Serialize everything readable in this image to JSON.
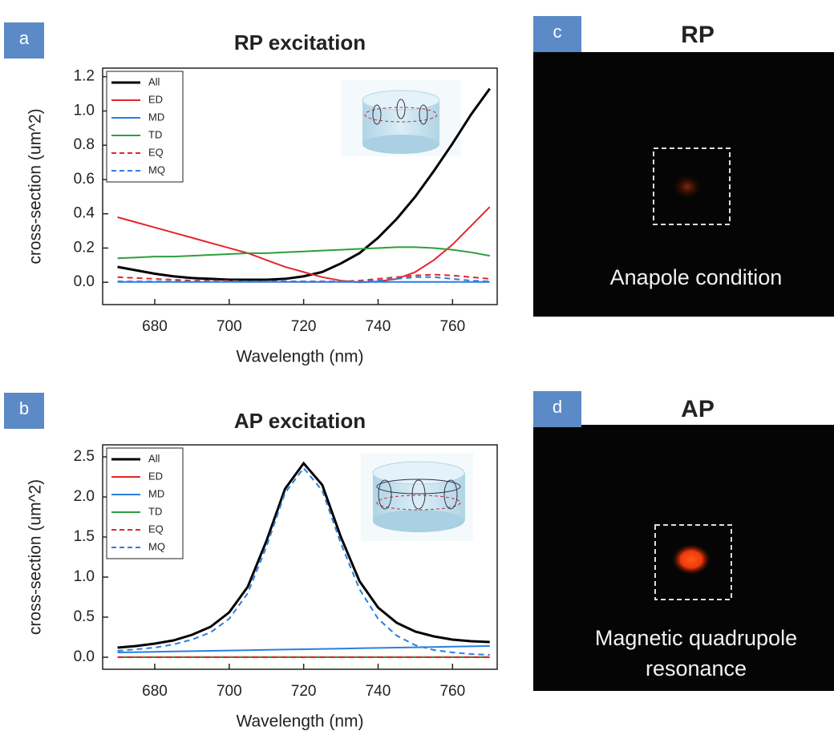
{
  "chart_data": [
    {
      "type": "line",
      "panel_label": "a",
      "title": "RP excitation",
      "x_label": "Wavelength (nm)",
      "y_label": "cross-section (um^2)",
      "x": [
        670,
        675,
        680,
        685,
        690,
        695,
        700,
        705,
        710,
        715,
        720,
        725,
        730,
        735,
        740,
        745,
        750,
        755,
        760,
        765,
        770
      ],
      "series": [
        {
          "name": "All",
          "color": "#000000",
          "dashed": false,
          "values": [
            0.09,
            0.07,
            0.05,
            0.035,
            0.025,
            0.02,
            0.015,
            0.015,
            0.015,
            0.02,
            0.035,
            0.06,
            0.11,
            0.17,
            0.26,
            0.37,
            0.5,
            0.65,
            0.81,
            0.98,
            1.13
          ]
        },
        {
          "name": "ED",
          "color": "#e3262b",
          "dashed": false,
          "values": [
            0.38,
            0.35,
            0.32,
            0.29,
            0.26,
            0.23,
            0.2,
            0.17,
            0.13,
            0.09,
            0.06,
            0.03,
            0.01,
            0.0,
            0.005,
            0.02,
            0.06,
            0.13,
            0.22,
            0.33,
            0.44
          ]
        },
        {
          "name": "MD",
          "color": "#2b7ee0",
          "dashed": false,
          "values": [
            0.002,
            0.002,
            0.002,
            0.002,
            0.002,
            0.002,
            0.002,
            0.002,
            0.002,
            0.002,
            0.002,
            0.002,
            0.002,
            0.002,
            0.002,
            0.002,
            0.002,
            0.002,
            0.002,
            0.002,
            0.002
          ]
        },
        {
          "name": "TD",
          "color": "#2e9e3e",
          "dashed": false,
          "values": [
            0.14,
            0.145,
            0.15,
            0.15,
            0.155,
            0.16,
            0.165,
            0.17,
            0.17,
            0.175,
            0.18,
            0.185,
            0.19,
            0.195,
            0.2,
            0.205,
            0.205,
            0.2,
            0.19,
            0.175,
            0.155
          ]
        },
        {
          "name": "EQ",
          "color": "#e3262b",
          "dashed": true,
          "values": [
            0.03,
            0.025,
            0.02,
            0.015,
            0.01,
            0.01,
            0.01,
            0.005,
            0.005,
            0.005,
            0.005,
            0.005,
            0.005,
            0.01,
            0.02,
            0.03,
            0.04,
            0.045,
            0.04,
            0.03,
            0.02
          ]
        },
        {
          "name": "MQ",
          "color": "#2b7ee0",
          "dashed": true,
          "values": [
            0.005,
            0.005,
            0.005,
            0.005,
            0.005,
            0.005,
            0.005,
            0.005,
            0.005,
            0.005,
            0.005,
            0.005,
            0.005,
            0.005,
            0.01,
            0.02,
            0.03,
            0.03,
            0.02,
            0.01,
            0.005
          ]
        }
      ],
      "xlim": [
        666,
        772
      ],
      "ylim": [
        -0.13,
        1.25
      ],
      "xticks": [
        680,
        700,
        720,
        740,
        760
      ],
      "yticks": [
        {
          "value": 0,
          "label": "0.0"
        },
        0.2,
        0.4,
        0.6,
        0.8,
        {
          "value": 1,
          "label": "1.0"
        },
        1.2
      ],
      "legend": "upper left"
    },
    {
      "type": "line",
      "panel_label": "b",
      "title": "AP excitation",
      "x_label": "Wavelength (nm)",
      "y_label": "cross-section (um^2)",
      "x": [
        670,
        675,
        680,
        685,
        690,
        695,
        700,
        705,
        710,
        715,
        720,
        725,
        730,
        735,
        740,
        745,
        750,
        755,
        760,
        765,
        770
      ],
      "series": [
        {
          "name": "All",
          "color": "#000000",
          "dashed": false,
          "values": [
            0.12,
            0.14,
            0.17,
            0.21,
            0.28,
            0.38,
            0.56,
            0.88,
            1.45,
            2.1,
            2.42,
            2.15,
            1.5,
            0.95,
            0.62,
            0.43,
            0.32,
            0.26,
            0.22,
            0.2,
            0.19
          ]
        },
        {
          "name": "ED",
          "color": "#e3262b",
          "dashed": false,
          "values": [
            0.003,
            0.003,
            0.003,
            0.003,
            0.003,
            0.003,
            0.003,
            0.003,
            0.003,
            0.003,
            0.003,
            0.003,
            0.003,
            0.003,
            0.003,
            0.003,
            0.003,
            0.003,
            0.003,
            0.003,
            0.003
          ]
        },
        {
          "name": "MD",
          "color": "#2b7ee0",
          "dashed": false,
          "values": [
            0.06,
            0.064,
            0.068,
            0.072,
            0.076,
            0.08,
            0.084,
            0.088,
            0.092,
            0.096,
            0.1,
            0.104,
            0.108,
            0.112,
            0.116,
            0.12,
            0.124,
            0.128,
            0.132,
            0.136,
            0.14
          ]
        },
        {
          "name": "TD",
          "color": "#2e9e3e",
          "dashed": false,
          "values": [
            0,
            0,
            0,
            0,
            0,
            0,
            0,
            0,
            0,
            0,
            0,
            0,
            0,
            0,
            0,
            0,
            0,
            0,
            0,
            0,
            0
          ]
        },
        {
          "name": "EQ",
          "color": "#e3262b",
          "dashed": true,
          "values": [
            0,
            0,
            0,
            0,
            0,
            0,
            0,
            0,
            0,
            0,
            0,
            0,
            0,
            0,
            0,
            0,
            0,
            0,
            0,
            0,
            0
          ]
        },
        {
          "name": "MQ",
          "color": "#2b7ee0",
          "dashed": true,
          "values": [
            0.08,
            0.1,
            0.12,
            0.16,
            0.22,
            0.31,
            0.48,
            0.8,
            1.38,
            2.05,
            2.36,
            2.08,
            1.42,
            0.85,
            0.48,
            0.27,
            0.15,
            0.09,
            0.06,
            0.04,
            0.03
          ]
        }
      ],
      "xlim": [
        666,
        772
      ],
      "ylim": [
        -0.15,
        2.65
      ],
      "xticks": [
        680,
        700,
        720,
        740,
        760
      ],
      "yticks": [
        {
          "value": 0,
          "label": "0.0"
        },
        0.5,
        {
          "value": 1,
          "label": "1.0"
        },
        1.5,
        {
          "value": 2,
          "label": "2.0"
        },
        2.5
      ],
      "legend": "upper left"
    }
  ],
  "images": [
    {
      "panel_label": "c",
      "title": "RP",
      "caption_lines": [
        "Anapole condition"
      ]
    },
    {
      "panel_label": "d",
      "title": "AP",
      "caption_lines": [
        "Magnetic quadrupole",
        "resonance"
      ]
    }
  ]
}
